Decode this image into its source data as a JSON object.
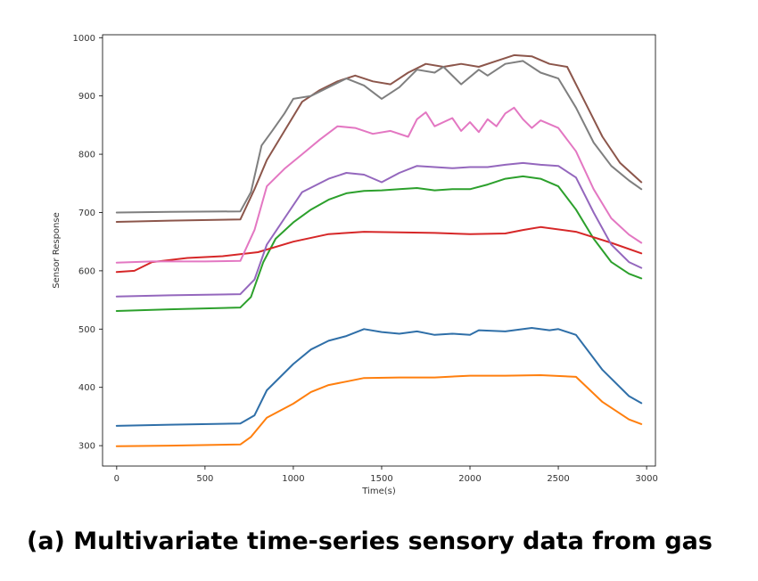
{
  "caption": "(a) Multivariate time-series sensory data from gas",
  "chart_data": {
    "type": "line",
    "xlabel": "Time(s)",
    "ylabel": "Sensor Response",
    "xlim": [
      -80,
      3050
    ],
    "ylim": [
      265,
      1005
    ],
    "xticks": [
      0,
      500,
      1000,
      1500,
      2000,
      2500,
      3000
    ],
    "yticks": [
      300,
      400,
      500,
      600,
      700,
      800,
      900,
      1000
    ],
    "grid": false,
    "series": [
      {
        "color": "#2f6fa8",
        "points": [
          [
            0,
            334
          ],
          [
            300,
            336
          ],
          [
            700,
            338
          ],
          [
            780,
            352
          ],
          [
            850,
            395
          ],
          [
            1000,
            440
          ],
          [
            1100,
            465
          ],
          [
            1200,
            480
          ],
          [
            1300,
            488
          ],
          [
            1400,
            500
          ],
          [
            1500,
            495
          ],
          [
            1600,
            492
          ],
          [
            1700,
            496
          ],
          [
            1800,
            490
          ],
          [
            1900,
            492
          ],
          [
            2000,
            490
          ],
          [
            2050,
            498
          ],
          [
            2200,
            496
          ],
          [
            2350,
            502
          ],
          [
            2450,
            498
          ],
          [
            2500,
            500
          ],
          [
            2600,
            490
          ],
          [
            2750,
            430
          ],
          [
            2900,
            385
          ],
          [
            2970,
            373
          ]
        ]
      },
      {
        "color": "#ff7f0e",
        "points": [
          [
            0,
            299
          ],
          [
            300,
            300
          ],
          [
            700,
            302
          ],
          [
            760,
            315
          ],
          [
            850,
            348
          ],
          [
            1000,
            372
          ],
          [
            1100,
            392
          ],
          [
            1200,
            404
          ],
          [
            1300,
            410
          ],
          [
            1400,
            416
          ],
          [
            1600,
            417
          ],
          [
            1800,
            417
          ],
          [
            2000,
            420
          ],
          [
            2200,
            420
          ],
          [
            2400,
            421
          ],
          [
            2600,
            418
          ],
          [
            2750,
            375
          ],
          [
            2900,
            345
          ],
          [
            2970,
            337
          ]
        ]
      },
      {
        "color": "#2ca02c",
        "points": [
          [
            0,
            531
          ],
          [
            300,
            534
          ],
          [
            700,
            537
          ],
          [
            760,
            555
          ],
          [
            830,
            615
          ],
          [
            900,
            655
          ],
          [
            1000,
            683
          ],
          [
            1100,
            705
          ],
          [
            1200,
            722
          ],
          [
            1300,
            733
          ],
          [
            1400,
            737
          ],
          [
            1500,
            738
          ],
          [
            1600,
            740
          ],
          [
            1700,
            742
          ],
          [
            1800,
            738
          ],
          [
            1900,
            740
          ],
          [
            2000,
            740
          ],
          [
            2100,
            748
          ],
          [
            2200,
            758
          ],
          [
            2300,
            762
          ],
          [
            2400,
            758
          ],
          [
            2500,
            745
          ],
          [
            2600,
            705
          ],
          [
            2700,
            655
          ],
          [
            2800,
            615
          ],
          [
            2900,
            595
          ],
          [
            2970,
            587
          ]
        ]
      },
      {
        "color": "#d62728",
        "points": [
          [
            0,
            598
          ],
          [
            100,
            600
          ],
          [
            200,
            615
          ],
          [
            400,
            622
          ],
          [
            600,
            625
          ],
          [
            800,
            632
          ],
          [
            1000,
            650
          ],
          [
            1200,
            663
          ],
          [
            1400,
            667
          ],
          [
            1600,
            666
          ],
          [
            1800,
            665
          ],
          [
            2000,
            663
          ],
          [
            2200,
            664
          ],
          [
            2300,
            670
          ],
          [
            2400,
            675
          ],
          [
            2600,
            667
          ],
          [
            2800,
            648
          ],
          [
            2970,
            630
          ]
        ]
      },
      {
        "color": "#9467bd",
        "points": [
          [
            0,
            556
          ],
          [
            300,
            558
          ],
          [
            700,
            560
          ],
          [
            780,
            585
          ],
          [
            850,
            645
          ],
          [
            950,
            690
          ],
          [
            1050,
            735
          ],
          [
            1200,
            758
          ],
          [
            1300,
            768
          ],
          [
            1400,
            765
          ],
          [
            1500,
            752
          ],
          [
            1600,
            768
          ],
          [
            1700,
            780
          ],
          [
            1800,
            778
          ],
          [
            1900,
            776
          ],
          [
            2000,
            778
          ],
          [
            2100,
            778
          ],
          [
            2200,
            782
          ],
          [
            2300,
            785
          ],
          [
            2400,
            782
          ],
          [
            2500,
            780
          ],
          [
            2600,
            760
          ],
          [
            2700,
            700
          ],
          [
            2800,
            645
          ],
          [
            2900,
            615
          ],
          [
            2970,
            605
          ]
        ]
      },
      {
        "color": "#e377c2",
        "points": [
          [
            0,
            614
          ],
          [
            200,
            616
          ],
          [
            500,
            616
          ],
          [
            700,
            617
          ],
          [
            780,
            670
          ],
          [
            850,
            745
          ],
          [
            950,
            775
          ],
          [
            1050,
            800
          ],
          [
            1150,
            825
          ],
          [
            1250,
            848
          ],
          [
            1350,
            845
          ],
          [
            1450,
            835
          ],
          [
            1550,
            840
          ],
          [
            1650,
            830
          ],
          [
            1700,
            860
          ],
          [
            1750,
            872
          ],
          [
            1800,
            848
          ],
          [
            1900,
            862
          ],
          [
            1950,
            840
          ],
          [
            2000,
            855
          ],
          [
            2050,
            838
          ],
          [
            2100,
            860
          ],
          [
            2150,
            848
          ],
          [
            2200,
            870
          ],
          [
            2250,
            880
          ],
          [
            2300,
            860
          ],
          [
            2350,
            845
          ],
          [
            2400,
            858
          ],
          [
            2500,
            845
          ],
          [
            2600,
            805
          ],
          [
            2700,
            740
          ],
          [
            2800,
            690
          ],
          [
            2900,
            662
          ],
          [
            2970,
            648
          ]
        ]
      },
      {
        "color": "#8c564b",
        "points": [
          [
            0,
            684
          ],
          [
            300,
            686
          ],
          [
            700,
            688
          ],
          [
            780,
            740
          ],
          [
            850,
            790
          ],
          [
            950,
            840
          ],
          [
            1050,
            890
          ],
          [
            1150,
            910
          ],
          [
            1250,
            925
          ],
          [
            1350,
            935
          ],
          [
            1450,
            925
          ],
          [
            1550,
            920
          ],
          [
            1650,
            940
          ],
          [
            1750,
            955
          ],
          [
            1850,
            950
          ],
          [
            1950,
            955
          ],
          [
            2050,
            950
          ],
          [
            2150,
            960
          ],
          [
            2250,
            970
          ],
          [
            2350,
            968
          ],
          [
            2450,
            955
          ],
          [
            2550,
            950
          ],
          [
            2650,
            890
          ],
          [
            2750,
            830
          ],
          [
            2850,
            785
          ],
          [
            2970,
            752
          ]
        ]
      },
      {
        "color": "#7f7f7f",
        "points": [
          [
            0,
            700
          ],
          [
            300,
            701
          ],
          [
            700,
            702
          ],
          [
            760,
            735
          ],
          [
            820,
            815
          ],
          [
            880,
            840
          ],
          [
            950,
            870
          ],
          [
            1000,
            895
          ],
          [
            1100,
            900
          ],
          [
            1200,
            915
          ],
          [
            1300,
            930
          ],
          [
            1400,
            918
          ],
          [
            1500,
            895
          ],
          [
            1600,
            915
          ],
          [
            1700,
            945
          ],
          [
            1800,
            940
          ],
          [
            1850,
            950
          ],
          [
            1950,
            920
          ],
          [
            2050,
            945
          ],
          [
            2100,
            935
          ],
          [
            2200,
            955
          ],
          [
            2300,
            960
          ],
          [
            2400,
            940
          ],
          [
            2500,
            930
          ],
          [
            2600,
            880
          ],
          [
            2700,
            820
          ],
          [
            2800,
            780
          ],
          [
            2900,
            755
          ],
          [
            2970,
            740
          ]
        ]
      }
    ]
  }
}
